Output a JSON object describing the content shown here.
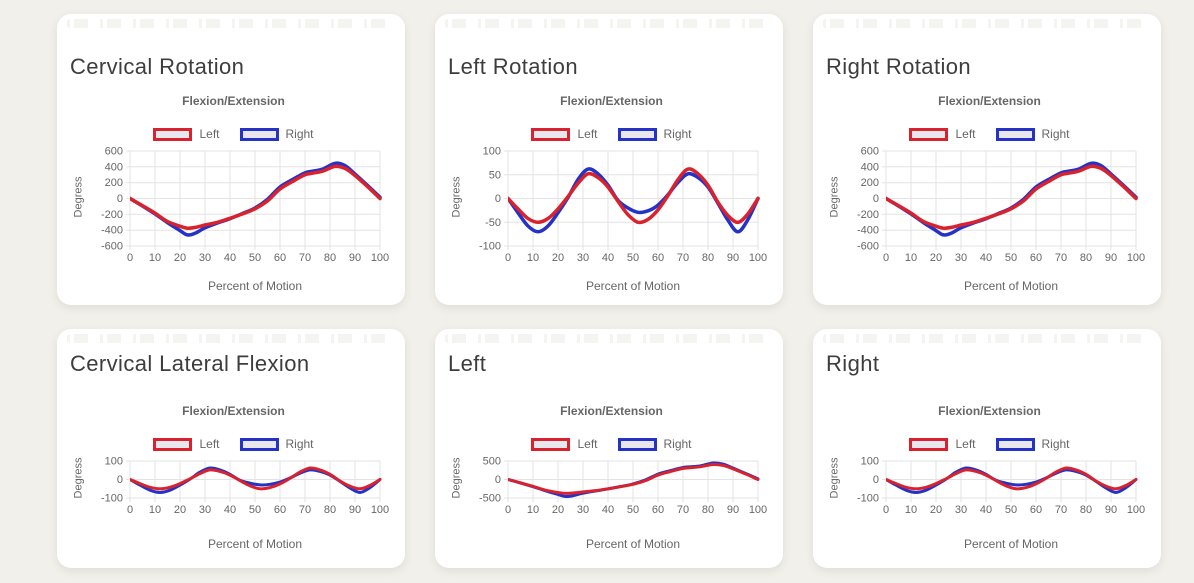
{
  "theme": {
    "page_bg": "#f2f0ea",
    "card_bg": "#ffffff",
    "title_text": "#3d3d3d",
    "muted_text": "#666666",
    "grid": "#e3e3e3",
    "left_series_color": "#d8232e",
    "right_series_color": "#2432c8",
    "legend_fill": "#e8e7ed"
  },
  "chart_data": [
    {
      "type": "line",
      "title": "Cervical Rotation",
      "subtitle": "Flexion/Extension",
      "xlabel": "Percent of Motion",
      "ylabel": "Degress",
      "legend_position": "top",
      "grid": true,
      "xlim": [
        0,
        100
      ],
      "ylim": [
        -600,
        600
      ],
      "xticks": [
        0,
        10,
        20,
        30,
        40,
        50,
        60,
        70,
        80,
        90,
        100
      ],
      "yticks": [
        600,
        400,
        200,
        0,
        -200,
        -400,
        -600
      ],
      "x": [
        0,
        5,
        10,
        15,
        20,
        23,
        26,
        30,
        35,
        40,
        45,
        50,
        55,
        60,
        65,
        70,
        73,
        77,
        82,
        86,
        90,
        95,
        100
      ],
      "series": [
        {
          "name": "Left",
          "color": "#d8232e",
          "values": [
            0,
            -90,
            -185,
            -290,
            -350,
            -375,
            -365,
            -335,
            -300,
            -250,
            -195,
            -130,
            -30,
            120,
            215,
            300,
            320,
            345,
            405,
            380,
            290,
            150,
            0
          ]
        },
        {
          "name": "Right",
          "color": "#2432c8",
          "values": [
            0,
            -95,
            -195,
            -305,
            -405,
            -460,
            -440,
            -370,
            -310,
            -255,
            -190,
            -120,
            -10,
            145,
            240,
            325,
            345,
            370,
            445,
            415,
            310,
            165,
            15
          ]
        }
      ]
    },
    {
      "type": "line",
      "title": "Left Rotation",
      "subtitle": "Flexion/Extension",
      "xlabel": "Percent of Motion",
      "ylabel": "Degress",
      "legend_position": "top",
      "grid": true,
      "xlim": [
        0,
        100
      ],
      "ylim": [
        -100,
        100
      ],
      "xticks": [
        0,
        10,
        20,
        30,
        40,
        50,
        60,
        70,
        80,
        90,
        100
      ],
      "yticks": [
        100,
        50,
        0,
        -50,
        -100
      ],
      "x": [
        0,
        4,
        8,
        12,
        16,
        20,
        24,
        28,
        32,
        36,
        40,
        44,
        48,
        52,
        56,
        60,
        64,
        68,
        72,
        76,
        80,
        84,
        88,
        92,
        96,
        100
      ],
      "series": [
        {
          "name": "Left",
          "color": "#d8232e",
          "values": [
            0,
            -22,
            -42,
            -50,
            -42,
            -22,
            4,
            32,
            52,
            44,
            24,
            -6,
            -34,
            -50,
            -44,
            -24,
            6,
            40,
            62,
            52,
            28,
            -8,
            -36,
            -50,
            -32,
            0
          ]
        },
        {
          "name": "Right",
          "color": "#2432c8",
          "values": [
            0,
            -30,
            -58,
            -70,
            -58,
            -30,
            2,
            40,
            62,
            52,
            28,
            -4,
            -20,
            -29,
            -26,
            -14,
            8,
            34,
            52,
            44,
            24,
            -10,
            -46,
            -70,
            -44,
            0
          ]
        }
      ]
    },
    {
      "type": "line",
      "title": "Right Rotation",
      "subtitle": "Flexion/Extension",
      "xlabel": "Percent of Motion",
      "ylabel": "Degress",
      "legend_position": "top",
      "grid": true,
      "xlim": [
        0,
        100
      ],
      "ylim": [
        -600,
        600
      ],
      "xticks": [
        0,
        10,
        20,
        30,
        40,
        50,
        60,
        70,
        80,
        90,
        100
      ],
      "yticks": [
        600,
        400,
        200,
        0,
        -200,
        -400,
        -600
      ],
      "x": [
        0,
        5,
        10,
        15,
        20,
        23,
        26,
        30,
        35,
        40,
        45,
        50,
        55,
        60,
        65,
        70,
        73,
        77,
        82,
        86,
        90,
        95,
        100
      ],
      "series": [
        {
          "name": "Left",
          "color": "#d8232e",
          "values": [
            0,
            -90,
            -185,
            -290,
            -350,
            -375,
            -365,
            -335,
            -300,
            -250,
            -195,
            -130,
            -30,
            120,
            215,
            300,
            320,
            345,
            405,
            380,
            290,
            150,
            0
          ]
        },
        {
          "name": "Right",
          "color": "#2432c8",
          "values": [
            0,
            -95,
            -195,
            -305,
            -405,
            -460,
            -440,
            -370,
            -310,
            -255,
            -190,
            -120,
            -10,
            145,
            240,
            325,
            345,
            370,
            445,
            415,
            310,
            165,
            15
          ]
        }
      ]
    },
    {
      "type": "line",
      "title": "Cervical Lateral Flexion",
      "subtitle": "Flexion/Extension",
      "xlabel": "Percent of Motion",
      "ylabel": "Degress",
      "legend_position": "top",
      "grid": true,
      "xlim": [
        0,
        100
      ],
      "ylim": [
        -100,
        100
      ],
      "xticks": [
        0,
        10,
        20,
        30,
        40,
        50,
        60,
        70,
        80,
        90,
        100
      ],
      "yticks": [
        100,
        0,
        -100
      ],
      "x": [
        0,
        4,
        8,
        12,
        16,
        20,
        24,
        28,
        32,
        36,
        40,
        44,
        48,
        52,
        56,
        60,
        64,
        68,
        72,
        76,
        80,
        84,
        88,
        92,
        96,
        100
      ],
      "series": [
        {
          "name": "Left",
          "color": "#d8232e",
          "values": [
            0,
            -22,
            -42,
            -50,
            -42,
            -22,
            4,
            32,
            52,
            44,
            24,
            -6,
            -34,
            -50,
            -44,
            -24,
            6,
            40,
            62,
            52,
            28,
            -8,
            -36,
            -50,
            -32,
            0
          ]
        },
        {
          "name": "Right",
          "color": "#2432c8",
          "values": [
            0,
            -30,
            -58,
            -70,
            -58,
            -30,
            2,
            40,
            62,
            52,
            28,
            -4,
            -20,
            -29,
            -26,
            -14,
            8,
            34,
            52,
            44,
            24,
            -10,
            -46,
            -70,
            -44,
            0
          ]
        }
      ]
    },
    {
      "type": "line",
      "title": "Left",
      "subtitle": "Flexion/Extension",
      "xlabel": "Percent of Motion",
      "ylabel": "Degress",
      "legend_position": "top",
      "grid": true,
      "xlim": [
        0,
        100
      ],
      "ylim": [
        -500,
        500
      ],
      "xticks": [
        0,
        10,
        20,
        30,
        40,
        50,
        60,
        70,
        80,
        90,
        100
      ],
      "yticks": [
        500,
        0,
        -500
      ],
      "x": [
        0,
        5,
        10,
        15,
        20,
        23,
        26,
        30,
        35,
        40,
        45,
        50,
        55,
        60,
        65,
        70,
        73,
        77,
        82,
        86,
        90,
        95,
        100
      ],
      "series": [
        {
          "name": "Left",
          "color": "#d8232e",
          "values": [
            0,
            -90,
            -185,
            -290,
            -350,
            -375,
            -365,
            -335,
            -300,
            -250,
            -195,
            -130,
            -30,
            120,
            215,
            300,
            320,
            345,
            405,
            380,
            290,
            150,
            0
          ]
        },
        {
          "name": "Right",
          "color": "#2432c8",
          "values": [
            0,
            -95,
            -195,
            -305,
            -405,
            -460,
            -440,
            -370,
            -310,
            -255,
            -190,
            -120,
            -10,
            145,
            240,
            325,
            345,
            370,
            445,
            415,
            310,
            165,
            15
          ]
        }
      ]
    },
    {
      "type": "line",
      "title": "Right",
      "subtitle": "Flexion/Extension",
      "xlabel": "Percent of Motion",
      "ylabel": "Degress",
      "legend_position": "top",
      "grid": true,
      "xlim": [
        0,
        100
      ],
      "ylim": [
        -100,
        100
      ],
      "xticks": [
        0,
        10,
        20,
        30,
        40,
        50,
        60,
        70,
        80,
        90,
        100
      ],
      "yticks": [
        100,
        0,
        -100
      ],
      "x": [
        0,
        4,
        8,
        12,
        16,
        20,
        24,
        28,
        32,
        36,
        40,
        44,
        48,
        52,
        56,
        60,
        64,
        68,
        72,
        76,
        80,
        84,
        88,
        92,
        96,
        100
      ],
      "series": [
        {
          "name": "Left",
          "color": "#d8232e",
          "values": [
            0,
            -22,
            -42,
            -50,
            -42,
            -22,
            4,
            32,
            52,
            44,
            24,
            -6,
            -34,
            -50,
            -44,
            -24,
            6,
            40,
            62,
            52,
            28,
            -8,
            -36,
            -50,
            -32,
            0
          ]
        },
        {
          "name": "Right",
          "color": "#2432c8",
          "values": [
            0,
            -30,
            -58,
            -70,
            -58,
            -30,
            2,
            40,
            62,
            52,
            28,
            -4,
            -20,
            -29,
            -26,
            -14,
            8,
            34,
            52,
            44,
            24,
            -10,
            -46,
            -70,
            -44,
            0
          ]
        }
      ]
    }
  ]
}
